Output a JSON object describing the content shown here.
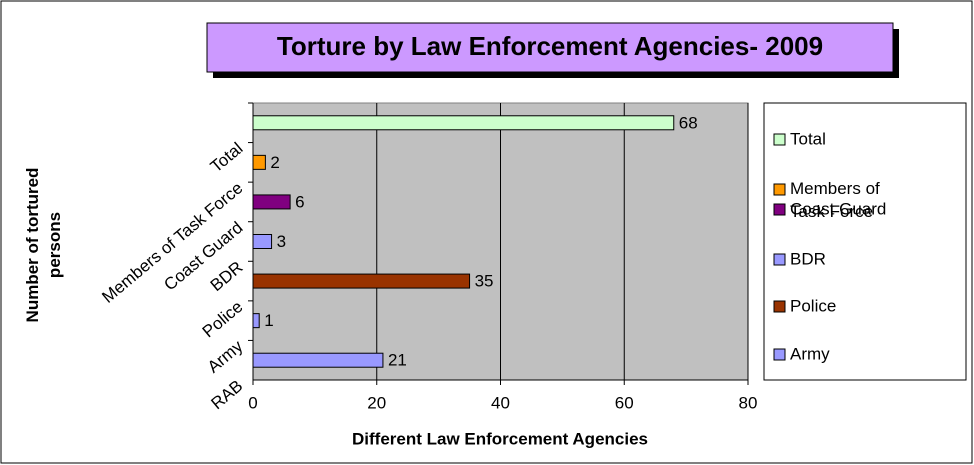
{
  "chart_data": {
    "type": "bar",
    "orientation": "horizontal",
    "title": "Torture by Law Enforcement Agencies- 2009",
    "x_label": "Different Law Enforcement Agencies",
    "y_label": "Number of tortured persons",
    "categories": [
      "Total",
      "Members of Task Force",
      "Coast Guard",
      "BDR",
      "Police",
      "Army",
      "RAB"
    ],
    "values": [
      68,
      2,
      6,
      3,
      35,
      1,
      21
    ],
    "colors": [
      "#ccffcc",
      "#ff9900",
      "#800080",
      "#9999ff",
      "#993300",
      "#9999ff",
      "#9999ff"
    ],
    "legend": [
      {
        "name": "Total",
        "color": "#ccffcc"
      },
      {
        "name": "Members of Task Force",
        "color": "#ff9900"
      },
      {
        "name": "Coast Guard",
        "color": "#800080"
      },
      {
        "name": "BDR",
        "color": "#9999ff"
      },
      {
        "name": "Police",
        "color": "#993300"
      },
      {
        "name": "Army",
        "color": "#9999ff"
      }
    ],
    "xlim": [
      0,
      80
    ],
    "xticks": [
      0,
      20,
      40,
      60,
      80
    ],
    "grid": true,
    "legend_position": "right"
  }
}
